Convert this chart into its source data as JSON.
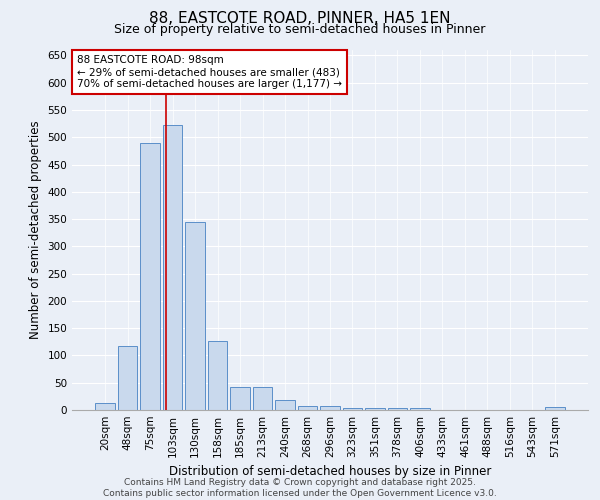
{
  "title": "88, EASTCOTE ROAD, PINNER, HA5 1EN",
  "subtitle": "Size of property relative to semi-detached houses in Pinner",
  "xlabel": "Distribution of semi-detached houses by size in Pinner",
  "ylabel": "Number of semi-detached properties",
  "categories": [
    "20sqm",
    "48sqm",
    "75sqm",
    "103sqm",
    "130sqm",
    "158sqm",
    "185sqm",
    "213sqm",
    "240sqm",
    "268sqm",
    "296sqm",
    "323sqm",
    "351sqm",
    "378sqm",
    "406sqm",
    "433sqm",
    "461sqm",
    "488sqm",
    "516sqm",
    "543sqm",
    "571sqm"
  ],
  "values": [
    12,
    117,
    490,
    522,
    345,
    127,
    42,
    42,
    18,
    8,
    8,
    3,
    3,
    3,
    3,
    0,
    0,
    0,
    0,
    0,
    5
  ],
  "bar_color": "#c9d9ed",
  "bar_edge_color": "#5b8fc9",
  "bg_color": "#eaeff7",
  "annotation_text": "88 EASTCOTE ROAD: 98sqm\n← 29% of semi-detached houses are smaller (483)\n70% of semi-detached houses are larger (1,177) →",
  "vline_x_index": 2.72,
  "annotation_box_color": "#ffffff",
  "annotation_box_edge": "#cc0000",
  "vline_color": "#cc0000",
  "footer": "Contains HM Land Registry data © Crown copyright and database right 2025.\nContains public sector information licensed under the Open Government Licence v3.0.",
  "ylim": [
    0,
    660
  ],
  "yticks": [
    0,
    50,
    100,
    150,
    200,
    250,
    300,
    350,
    400,
    450,
    500,
    550,
    600,
    650
  ],
  "title_fontsize": 11,
  "subtitle_fontsize": 9,
  "xlabel_fontsize": 8.5,
  "ylabel_fontsize": 8.5,
  "tick_fontsize": 7.5,
  "annotation_fontsize": 7.5,
  "footer_fontsize": 6.5
}
